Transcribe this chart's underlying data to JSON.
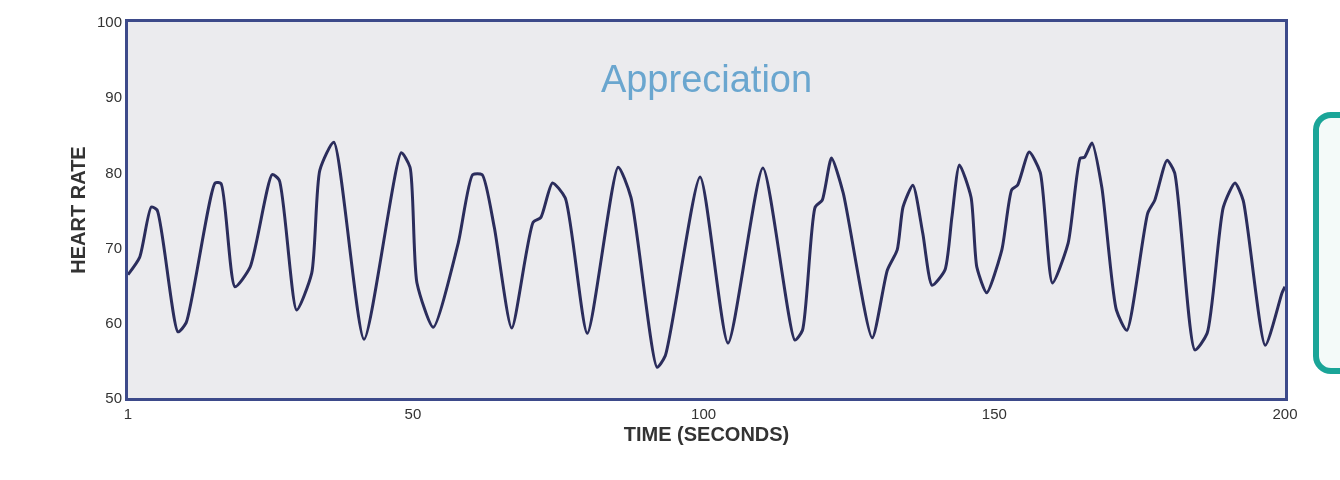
{
  "chart_data": {
    "type": "line",
    "title": "Appreciation",
    "xlabel": "TIME (SECONDS)",
    "ylabel": "HEART RATE",
    "xlim": [
      1,
      200
    ],
    "xticks": [
      1,
      50,
      100,
      150,
      200
    ],
    "ylim": [
      50,
      100
    ],
    "yticks": [
      50,
      60,
      70,
      80,
      90,
      100
    ],
    "grid": false,
    "marker": "none",
    "line_style": "solid",
    "series": [
      {
        "color": "#2b2d5c",
        "x": [
          1,
          3,
          5,
          6,
          9.6,
          11,
          16,
          17,
          19.4,
          22,
          25.8,
          27,
          30,
          32.6,
          34,
          36.4,
          41.6,
          48,
          49.5,
          50.7,
          53.5,
          57.8,
          60.3,
          61.9,
          64,
          67,
          70.7,
          72,
          74,
          76.2,
          80,
          85.3,
          87.5,
          92,
          93.4,
          99.4,
          104.2,
          110.2,
          115.7,
          117,
          119.2,
          120.4,
          122,
          124,
          129,
          131.6,
          133.3,
          134.3,
          136,
          137.7,
          139.3,
          141.5,
          142.7,
          144,
          146,
          147,
          148.7,
          151.3,
          153,
          154,
          156,
          157.9,
          160,
          162.7,
          164.8,
          165.5,
          166.8,
          168.5,
          171,
          172.8,
          176.4,
          177.6,
          179.7,
          181,
          184.5,
          186.6,
          189.4,
          191.4,
          192.8,
          196.6,
          199.5,
          200
        ],
        "values": [
          66.4,
          68.7,
          75.4,
          75,
          58.8,
          60,
          78.6,
          78.5,
          64.8,
          67.4,
          79.7,
          79,
          61.7,
          66.6,
          80.3,
          84,
          57.8,
          82.6,
          80.7,
          65.3,
          59.4,
          70.6,
          79.7,
          79.7,
          72.7,
          59.3,
          73.4,
          74,
          78.6,
          76.6,
          58.6,
          80.7,
          76.7,
          54.1,
          55.6,
          79.4,
          57.3,
          80.6,
          57.7,
          59,
          75.4,
          76.3,
          81.9,
          77.3,
          58,
          67,
          69.7,
          75.4,
          78.3,
          71.9,
          65,
          67,
          74,
          81,
          76.7,
          67.4,
          64,
          69.7,
          77.7,
          78.3,
          82.7,
          80,
          65.3,
          70.6,
          81.9,
          82,
          83.9,
          78,
          61.7,
          59,
          74.6,
          76.3,
          81.6,
          80,
          56.4,
          58.6,
          75.4,
          78.6,
          76.3,
          57,
          64,
          64.8
        ]
      }
    ]
  }
}
